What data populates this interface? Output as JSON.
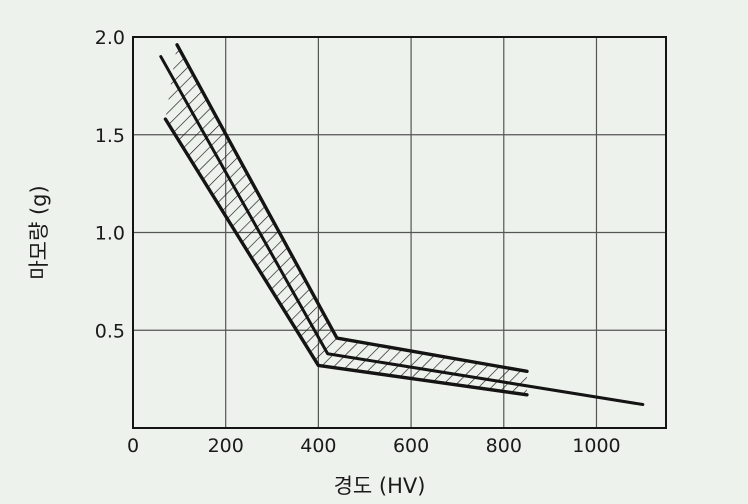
{
  "chart_data": {
    "type": "line",
    "title": "",
    "xlabel": "경도 (HV)",
    "ylabel": "마모량 (g)",
    "xlim": [
      0,
      1150
    ],
    "ylim": [
      0,
      2.0
    ],
    "xticks": [
      0,
      200,
      400,
      600,
      800,
      1000
    ],
    "yticks": [
      0.5,
      1.0,
      1.5,
      2.0
    ],
    "x_tick_labels": [
      "0",
      "200",
      "400",
      "600",
      "800",
      "1000"
    ],
    "y_tick_labels": [
      "0.5",
      "1.0",
      "1.5",
      "2.0"
    ],
    "grid": true,
    "band_fill": "hatched",
    "series": [
      {
        "role": "center",
        "x": [
          60,
          420,
          1100
        ],
        "y": [
          1.9,
          0.38,
          0.12
        ]
      },
      {
        "role": "band-upper",
        "x": [
          95,
          440,
          850
        ],
        "y": [
          1.96,
          0.46,
          0.29
        ]
      },
      {
        "role": "band-lower",
        "x": [
          70,
          400,
          850
        ],
        "y": [
          1.58,
          0.32,
          0.17
        ]
      }
    ],
    "colors": {
      "line": "#141414",
      "grid": "#555555",
      "background": "#eef2ec"
    }
  }
}
